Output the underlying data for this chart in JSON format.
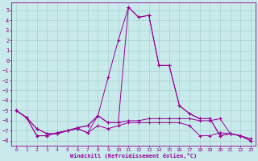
{
  "xlabel": "Windchill (Refroidissement éolien,°C)",
  "background_color": "#c8eaea",
  "grid_color": "#a8d0d0",
  "line_color": "#990099",
  "xlim": [
    -0.5,
    23.5
  ],
  "ylim": [
    -8.5,
    5.8
  ],
  "yticks": [
    5,
    4,
    3,
    2,
    1,
    0,
    -1,
    -2,
    -3,
    -4,
    -5,
    -6,
    -7,
    -8
  ],
  "xticks": [
    0,
    1,
    2,
    3,
    4,
    5,
    6,
    7,
    8,
    9,
    10,
    11,
    12,
    13,
    14,
    15,
    16,
    17,
    18,
    19,
    20,
    21,
    22,
    23
  ],
  "line1_x": [
    0,
    1,
    2,
    3,
    4,
    5,
    6,
    7,
    8,
    9,
    10,
    11,
    12,
    13,
    14,
    15,
    16,
    17,
    18,
    19,
    20,
    21,
    22,
    23
  ],
  "line1_y": [
    -5.0,
    -5.7,
    -6.8,
    -7.3,
    -7.3,
    -7.0,
    -6.7,
    -6.5,
    -5.5,
    -1.7,
    2.0,
    5.3,
    4.3,
    4.5,
    -0.5,
    -0.5,
    -4.5,
    -5.3,
    -5.8,
    -5.8,
    -7.5,
    -7.3,
    -7.5,
    -8.0
  ],
  "line2_x": [
    0,
    1,
    2,
    3,
    4,
    5,
    6,
    7,
    8,
    9,
    10,
    11,
    12,
    13,
    14,
    15,
    16,
    17,
    18,
    19,
    20,
    21,
    22,
    23
  ],
  "line2_y": [
    -5.0,
    -5.7,
    -6.8,
    -7.3,
    -7.3,
    -7.0,
    -6.7,
    -6.5,
    -5.5,
    -6.2,
    -6.2,
    -6.0,
    -6.0,
    -5.8,
    -5.8,
    -5.8,
    -5.8,
    -5.8,
    -6.0,
    -6.0,
    -5.8,
    -7.3,
    -7.5,
    -8.0
  ],
  "line3_x": [
    0,
    1,
    2,
    3,
    4,
    5,
    6,
    7,
    8,
    9,
    10,
    11,
    12,
    13,
    14,
    15,
    16,
    17,
    18,
    19,
    20,
    21,
    22,
    23
  ],
  "line3_y": [
    -5.0,
    -5.7,
    -7.5,
    -7.5,
    -7.2,
    -7.0,
    -6.8,
    -7.2,
    -6.5,
    -6.8,
    -6.5,
    -6.2,
    -6.2,
    -6.2,
    -6.2,
    -6.2,
    -6.2,
    -6.5,
    -7.5,
    -7.5,
    -7.2,
    -7.3,
    -7.5,
    -7.8
  ],
  "line4_x": [
    0,
    1,
    2,
    3,
    4,
    5,
    6,
    7,
    8,
    9,
    10,
    11,
    12,
    13,
    14,
    15,
    16,
    17,
    18,
    19,
    20,
    21,
    22,
    23
  ],
  "line4_y": [
    -5.0,
    -5.7,
    -7.5,
    -7.5,
    -7.2,
    -7.0,
    -6.8,
    -7.2,
    -5.5,
    -6.2,
    -6.2,
    5.3,
    4.3,
    4.5,
    -0.5,
    -0.5,
    -4.5,
    -5.3,
    -5.8,
    -5.8,
    -7.5,
    -7.3,
    -7.5,
    -8.0
  ]
}
